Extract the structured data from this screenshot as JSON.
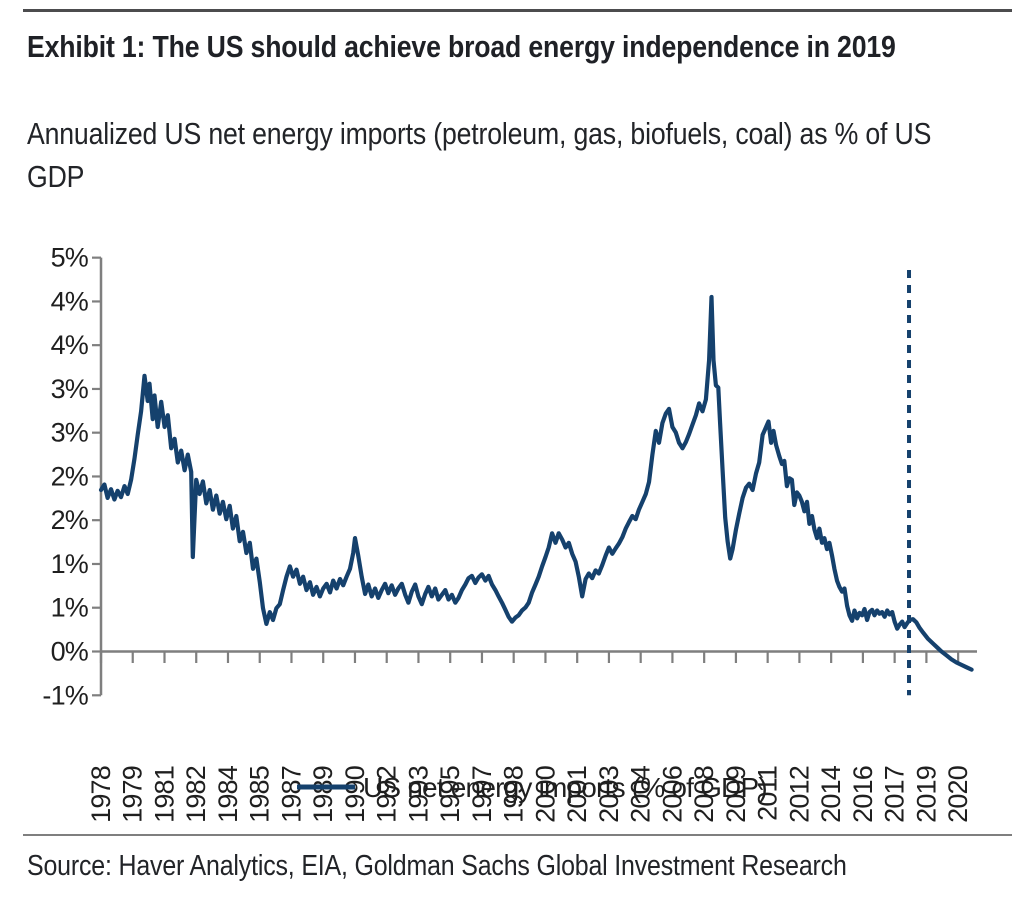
{
  "header": {
    "title": "Exhibit 1: The US should achieve broad energy independence in 2019",
    "subtitle": "Annualized US net energy imports (petroleum, gas, biofuels, coal) as % of US GDP"
  },
  "footer": {
    "source": "Source: Haver Analytics, EIA, Goldman Sachs Global Investment Research"
  },
  "legend": {
    "label": "US net energy imports (% of GDP)"
  },
  "colors": {
    "series_line": "#15416d",
    "forecast_divider": "#15416d",
    "axis": "#7f7f7f",
    "label_text": "#1f1f1f",
    "title_text": "#1f2126"
  },
  "chart_data": {
    "type": "line",
    "title": "Exhibit 1: The US should achieve broad energy independence in 2019",
    "xlabel": "",
    "ylabel": "",
    "legend_position": "bottom",
    "grid": false,
    "zero_axis_line": true,
    "forecast_divider_year": 2018.3,
    "x_range": [
      1978.0,
      2021.7
    ],
    "y_range": [
      -0.56,
      5.17
    ],
    "y_axis": {
      "tick_labels": [
        "5%",
        "4%",
        "4%",
        "3%",
        "3%",
        "2%",
        "2%",
        "1%",
        "1%",
        "0%",
        "-1%"
      ],
      "tick_values": [
        5.0,
        4.444,
        3.889,
        3.333,
        2.778,
        2.222,
        1.667,
        1.111,
        0.556,
        0.0,
        -0.556
      ]
    },
    "x_axis": {
      "tick_labels": [
        "1978",
        "1979",
        "1981",
        "1982",
        "1984",
        "1985",
        "1987",
        "1989",
        "1990",
        "1992",
        "1993",
        "1995",
        "1997",
        "1998",
        "2000",
        "2001",
        "2003",
        "2004",
        "2006",
        "2008",
        "2009",
        "2011",
        "2012",
        "2014",
        "2016",
        "2017",
        "2019",
        "2020"
      ],
      "tick_years": [
        1978.0,
        1979.583,
        1981.167,
        1982.75,
        1984.333,
        1985.917,
        1987.5,
        1989.083,
        1990.667,
        1992.25,
        1993.833,
        1995.417,
        1997.0,
        1998.583,
        2000.167,
        2001.75,
        2003.333,
        2004.917,
        2006.5,
        2008.083,
        2009.667,
        2011.25,
        2012.833,
        2014.417,
        2016.0,
        2017.583,
        2019.167,
        2020.75
      ]
    },
    "series": [
      {
        "name": "US net energy imports (% of GDP)",
        "points": [
          [
            1978.0,
            2.05
          ],
          [
            1978.17,
            2.12
          ],
          [
            1978.33,
            1.95
          ],
          [
            1978.5,
            2.06
          ],
          [
            1978.67,
            1.93
          ],
          [
            1978.83,
            2.04
          ],
          [
            1979.0,
            1.96
          ],
          [
            1979.17,
            2.1
          ],
          [
            1979.33,
            2.0
          ],
          [
            1979.5,
            2.18
          ],
          [
            1979.67,
            2.45
          ],
          [
            1979.83,
            2.75
          ],
          [
            1980.0,
            3.05
          ],
          [
            1980.17,
            3.5
          ],
          [
            1980.33,
            3.18
          ],
          [
            1980.42,
            3.4
          ],
          [
            1980.58,
            2.95
          ],
          [
            1980.67,
            3.25
          ],
          [
            1980.83,
            2.85
          ],
          [
            1981.0,
            3.17
          ],
          [
            1981.17,
            2.85
          ],
          [
            1981.33,
            3.0
          ],
          [
            1981.5,
            2.58
          ],
          [
            1981.67,
            2.7
          ],
          [
            1981.83,
            2.4
          ],
          [
            1982.0,
            2.55
          ],
          [
            1982.17,
            2.3
          ],
          [
            1982.33,
            2.5
          ],
          [
            1982.5,
            2.28
          ],
          [
            1982.58,
            1.2
          ],
          [
            1982.75,
            2.18
          ],
          [
            1982.92,
            2.0
          ],
          [
            1983.08,
            2.16
          ],
          [
            1983.25,
            1.88
          ],
          [
            1983.42,
            2.05
          ],
          [
            1983.58,
            1.8
          ],
          [
            1983.75,
            1.98
          ],
          [
            1983.92,
            1.75
          ],
          [
            1984.08,
            1.9
          ],
          [
            1984.25,
            1.68
          ],
          [
            1984.42,
            1.85
          ],
          [
            1984.58,
            1.56
          ],
          [
            1984.75,
            1.72
          ],
          [
            1984.92,
            1.4
          ],
          [
            1985.08,
            1.52
          ],
          [
            1985.25,
            1.25
          ],
          [
            1985.42,
            1.38
          ],
          [
            1985.58,
            1.05
          ],
          [
            1985.75,
            1.18
          ],
          [
            1985.92,
            0.88
          ],
          [
            1986.08,
            0.55
          ],
          [
            1986.25,
            0.35
          ],
          [
            1986.42,
            0.5
          ],
          [
            1986.58,
            0.4
          ],
          [
            1986.75,
            0.55
          ],
          [
            1986.92,
            0.6
          ],
          [
            1987.08,
            0.78
          ],
          [
            1987.25,
            0.95
          ],
          [
            1987.42,
            1.08
          ],
          [
            1987.58,
            0.95
          ],
          [
            1987.75,
            1.04
          ],
          [
            1987.92,
            0.86
          ],
          [
            1988.08,
            0.95
          ],
          [
            1988.25,
            0.78
          ],
          [
            1988.42,
            0.88
          ],
          [
            1988.58,
            0.72
          ],
          [
            1988.75,
            0.82
          ],
          [
            1988.92,
            0.7
          ],
          [
            1989.08,
            0.8
          ],
          [
            1989.25,
            0.86
          ],
          [
            1989.42,
            0.75
          ],
          [
            1989.58,
            0.9
          ],
          [
            1989.75,
            0.8
          ],
          [
            1989.92,
            0.92
          ],
          [
            1990.08,
            0.84
          ],
          [
            1990.25,
            0.95
          ],
          [
            1990.42,
            1.05
          ],
          [
            1990.58,
            1.25
          ],
          [
            1990.67,
            1.44
          ],
          [
            1990.83,
            1.22
          ],
          [
            1991.0,
            0.95
          ],
          [
            1991.17,
            0.73
          ],
          [
            1991.33,
            0.85
          ],
          [
            1991.5,
            0.7
          ],
          [
            1991.67,
            0.8
          ],
          [
            1991.83,
            0.68
          ],
          [
            1992.0,
            0.78
          ],
          [
            1992.17,
            0.86
          ],
          [
            1992.33,
            0.74
          ],
          [
            1992.5,
            0.84
          ],
          [
            1992.67,
            0.72
          ],
          [
            1992.83,
            0.8
          ],
          [
            1993.0,
            0.86
          ],
          [
            1993.17,
            0.72
          ],
          [
            1993.33,
            0.62
          ],
          [
            1993.5,
            0.76
          ],
          [
            1993.67,
            0.85
          ],
          [
            1993.83,
            0.7
          ],
          [
            1994.0,
            0.6
          ],
          [
            1994.17,
            0.73
          ],
          [
            1994.33,
            0.82
          ],
          [
            1994.5,
            0.7
          ],
          [
            1994.67,
            0.8
          ],
          [
            1994.83,
            0.66
          ],
          [
            1995.0,
            0.72
          ],
          [
            1995.17,
            0.78
          ],
          [
            1995.33,
            0.66
          ],
          [
            1995.5,
            0.72
          ],
          [
            1995.67,
            0.62
          ],
          [
            1995.83,
            0.68
          ],
          [
            1996.0,
            0.78
          ],
          [
            1996.17,
            0.85
          ],
          [
            1996.33,
            0.93
          ],
          [
            1996.5,
            0.96
          ],
          [
            1996.67,
            0.87
          ],
          [
            1996.83,
            0.94
          ],
          [
            1997.0,
            0.98
          ],
          [
            1997.17,
            0.9
          ],
          [
            1997.33,
            0.96
          ],
          [
            1997.5,
            0.85
          ],
          [
            1997.67,
            0.78
          ],
          [
            1997.83,
            0.7
          ],
          [
            1998.0,
            0.62
          ],
          [
            1998.17,
            0.53
          ],
          [
            1998.33,
            0.44
          ],
          [
            1998.5,
            0.38
          ],
          [
            1998.67,
            0.43
          ],
          [
            1998.83,
            0.46
          ],
          [
            1999.0,
            0.52
          ],
          [
            1999.17,
            0.56
          ],
          [
            1999.33,
            0.62
          ],
          [
            1999.5,
            0.75
          ],
          [
            1999.67,
            0.85
          ],
          [
            1999.83,
            0.95
          ],
          [
            2000.0,
            1.08
          ],
          [
            2000.17,
            1.2
          ],
          [
            2000.33,
            1.32
          ],
          [
            2000.5,
            1.5
          ],
          [
            2000.67,
            1.38
          ],
          [
            2000.83,
            1.5
          ],
          [
            2001.0,
            1.42
          ],
          [
            2001.17,
            1.32
          ],
          [
            2001.33,
            1.38
          ],
          [
            2001.5,
            1.24
          ],
          [
            2001.67,
            1.14
          ],
          [
            2001.83,
            0.95
          ],
          [
            2002.0,
            0.7
          ],
          [
            2002.17,
            0.92
          ],
          [
            2002.33,
            0.99
          ],
          [
            2002.5,
            0.93
          ],
          [
            2002.67,
            1.03
          ],
          [
            2002.83,
            0.99
          ],
          [
            2003.0,
            1.1
          ],
          [
            2003.17,
            1.22
          ],
          [
            2003.33,
            1.32
          ],
          [
            2003.5,
            1.24
          ],
          [
            2003.67,
            1.31
          ],
          [
            2003.83,
            1.37
          ],
          [
            2004.0,
            1.45
          ],
          [
            2004.17,
            1.56
          ],
          [
            2004.33,
            1.64
          ],
          [
            2004.5,
            1.72
          ],
          [
            2004.67,
            1.68
          ],
          [
            2004.83,
            1.8
          ],
          [
            2005.0,
            1.9
          ],
          [
            2005.17,
            2.0
          ],
          [
            2005.33,
            2.15
          ],
          [
            2005.5,
            2.5
          ],
          [
            2005.67,
            2.8
          ],
          [
            2005.83,
            2.65
          ],
          [
            2006.0,
            2.9
          ],
          [
            2006.17,
            3.02
          ],
          [
            2006.33,
            3.08
          ],
          [
            2006.5,
            2.85
          ],
          [
            2006.67,
            2.78
          ],
          [
            2006.83,
            2.65
          ],
          [
            2007.0,
            2.58
          ],
          [
            2007.17,
            2.66
          ],
          [
            2007.33,
            2.76
          ],
          [
            2007.5,
            2.88
          ],
          [
            2007.67,
            3.0
          ],
          [
            2007.83,
            3.15
          ],
          [
            2008.0,
            3.05
          ],
          [
            2008.17,
            3.2
          ],
          [
            2008.33,
            3.7
          ],
          [
            2008.45,
            4.5
          ],
          [
            2008.55,
            3.7
          ],
          [
            2008.67,
            3.38
          ],
          [
            2008.79,
            3.35
          ],
          [
            2008.88,
            2.9
          ],
          [
            2009.0,
            2.3
          ],
          [
            2009.13,
            1.7
          ],
          [
            2009.25,
            1.4
          ],
          [
            2009.38,
            1.18
          ],
          [
            2009.5,
            1.3
          ],
          [
            2009.67,
            1.55
          ],
          [
            2009.83,
            1.75
          ],
          [
            2010.0,
            1.95
          ],
          [
            2010.17,
            2.08
          ],
          [
            2010.33,
            2.13
          ],
          [
            2010.5,
            2.05
          ],
          [
            2010.67,
            2.26
          ],
          [
            2010.83,
            2.4
          ],
          [
            2011.0,
            2.75
          ],
          [
            2011.17,
            2.85
          ],
          [
            2011.29,
            2.92
          ],
          [
            2011.42,
            2.65
          ],
          [
            2011.54,
            2.8
          ],
          [
            2011.67,
            2.62
          ],
          [
            2011.83,
            2.48
          ],
          [
            2011.96,
            2.38
          ],
          [
            2012.08,
            2.42
          ],
          [
            2012.21,
            2.1
          ],
          [
            2012.33,
            2.2
          ],
          [
            2012.46,
            2.18
          ],
          [
            2012.58,
            1.86
          ],
          [
            2012.71,
            2.02
          ],
          [
            2012.83,
            1.98
          ],
          [
            2012.96,
            1.9
          ],
          [
            2013.08,
            1.78
          ],
          [
            2013.21,
            1.9
          ],
          [
            2013.33,
            1.62
          ],
          [
            2013.46,
            1.72
          ],
          [
            2013.58,
            1.55
          ],
          [
            2013.71,
            1.44
          ],
          [
            2013.83,
            1.56
          ],
          [
            2013.96,
            1.38
          ],
          [
            2014.08,
            1.44
          ],
          [
            2014.21,
            1.3
          ],
          [
            2014.33,
            1.38
          ],
          [
            2014.46,
            1.22
          ],
          [
            2014.58,
            1.05
          ],
          [
            2014.71,
            0.9
          ],
          [
            2014.83,
            0.82
          ],
          [
            2014.96,
            0.76
          ],
          [
            2015.08,
            0.8
          ],
          [
            2015.21,
            0.58
          ],
          [
            2015.33,
            0.46
          ],
          [
            2015.46,
            0.39
          ],
          [
            2015.58,
            0.52
          ],
          [
            2015.71,
            0.42
          ],
          [
            2015.83,
            0.49
          ],
          [
            2015.96,
            0.46
          ],
          [
            2016.08,
            0.54
          ],
          [
            2016.21,
            0.4
          ],
          [
            2016.33,
            0.5
          ],
          [
            2016.46,
            0.53
          ],
          [
            2016.58,
            0.46
          ],
          [
            2016.71,
            0.52
          ],
          [
            2016.83,
            0.48
          ],
          [
            2016.96,
            0.5
          ],
          [
            2017.08,
            0.44
          ],
          [
            2017.21,
            0.52
          ],
          [
            2017.33,
            0.47
          ],
          [
            2017.46,
            0.5
          ],
          [
            2017.58,
            0.38
          ],
          [
            2017.71,
            0.29
          ],
          [
            2017.83,
            0.34
          ],
          [
            2017.96,
            0.38
          ],
          [
            2018.08,
            0.31
          ],
          [
            2018.21,
            0.36
          ],
          [
            2018.33,
            0.4
          ],
          [
            2018.5,
            0.41
          ],
          [
            2018.67,
            0.37
          ],
          [
            2018.83,
            0.3
          ],
          [
            2019.0,
            0.24
          ],
          [
            2019.25,
            0.16
          ],
          [
            2019.5,
            0.1
          ],
          [
            2019.75,
            0.04
          ],
          [
            2019.92,
            0.0
          ],
          [
            2020.17,
            -0.05
          ],
          [
            2020.42,
            -0.1
          ],
          [
            2020.67,
            -0.14
          ],
          [
            2020.92,
            -0.17
          ],
          [
            2021.17,
            -0.2
          ],
          [
            2021.42,
            -0.23
          ]
        ]
      }
    ]
  }
}
